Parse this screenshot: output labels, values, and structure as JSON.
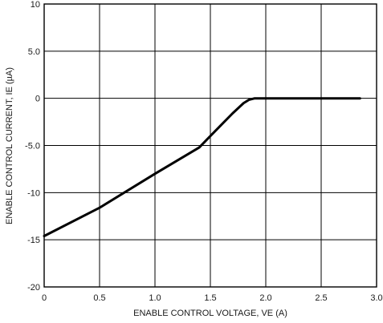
{
  "chart_data": {
    "type": "line",
    "xlabel": "ENABLE CONTROL VOLTAGE, VE (A)",
    "ylabel": "ENABLE CONTROL CURRENT, IE (µA)",
    "xlim": [
      0,
      3.0
    ],
    "ylim": [
      -20,
      10
    ],
    "grid": true,
    "x_ticks": [
      "0",
      "0.5",
      "1.0",
      "1.5",
      "2.0",
      "2.5",
      "3.0"
    ],
    "y_ticks": [
      "10",
      "5.0",
      "0",
      "-5.0",
      "-10",
      "-15",
      "-20"
    ],
    "series": [
      {
        "x": [
          0,
          0.5,
          1.0,
          1.4,
          1.5,
          1.6,
          1.7,
          1.8,
          1.85,
          1.9,
          2.0,
          2.3,
          2.6,
          2.85
        ],
        "values": [
          -14.6,
          -11.6,
          -8.0,
          -5.2,
          -4.0,
          -2.8,
          -1.6,
          -0.5,
          -0.15,
          0,
          0,
          0,
          0,
          0
        ]
      }
    ]
  }
}
